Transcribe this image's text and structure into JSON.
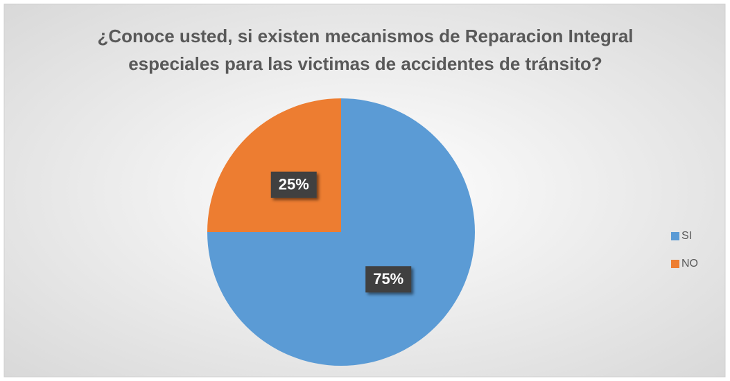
{
  "chart_data": {
    "type": "pie",
    "title": [
      "¿Conoce usted, si existen mecanismos de Reparacion Integral",
      "especiales para las victimas de accidentes de tránsito?"
    ],
    "categories": [
      "SI",
      "NO"
    ],
    "values": [
      75,
      25
    ],
    "value_labels": [
      "75%",
      "25%"
    ],
    "colors": [
      "#5b9bd5",
      "#ed7d31"
    ],
    "legend": "right"
  }
}
